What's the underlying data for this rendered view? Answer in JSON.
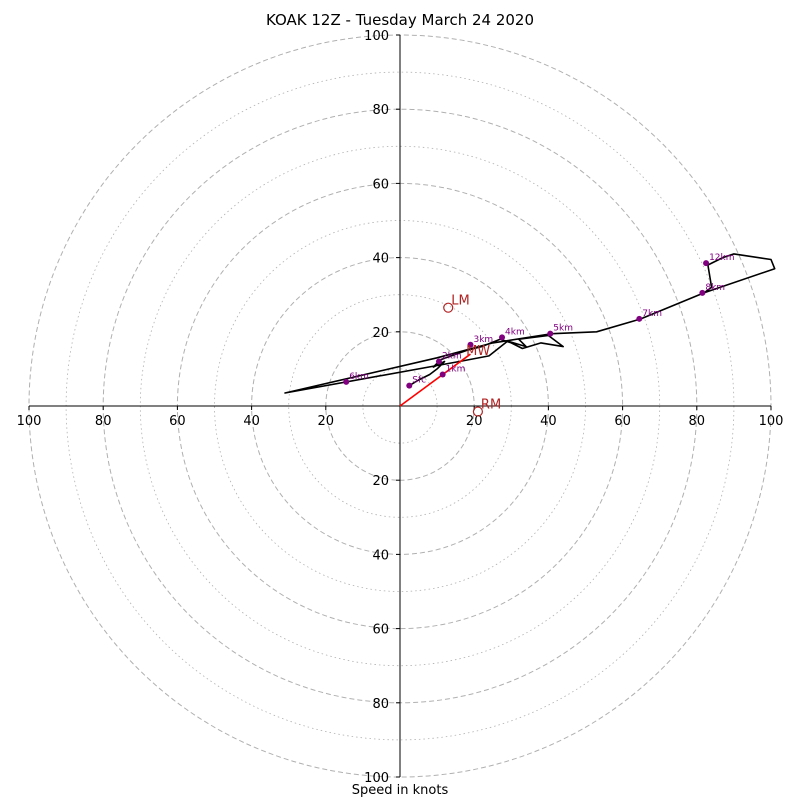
{
  "chart_data": {
    "type": "hodograph",
    "title": "KOAK 12Z - Tuesday March 24 2020",
    "xlabel": "Speed in knots",
    "units": "knots",
    "range": [
      -100,
      100
    ],
    "ring_labels": [
      "100",
      "80",
      "60",
      "40",
      "20",
      "20",
      "40",
      "60",
      "80",
      "100"
    ],
    "ring_label_values": [
      -100,
      -80,
      -60,
      -40,
      -20,
      20,
      40,
      60,
      80,
      100
    ],
    "major_rings": [
      20,
      40,
      60,
      80,
      100
    ],
    "minor_rings": [
      10,
      30,
      50,
      70,
      90
    ],
    "trace": [
      [
        2.5,
        5.5
      ],
      [
        5,
        7
      ],
      [
        8,
        8.5
      ],
      [
        10,
        10
      ],
      [
        12,
        12
      ],
      [
        9,
        10.5
      ],
      [
        11,
        12.5
      ],
      [
        18,
        15
      ],
      [
        22,
        16
      ],
      [
        27,
        18
      ],
      [
        30,
        17
      ],
      [
        33,
        15.5
      ],
      [
        38,
        17
      ],
      [
        44,
        16
      ],
      [
        40,
        19
      ],
      [
        32,
        18
      ],
      [
        34,
        16
      ],
      [
        29,
        17.5
      ],
      [
        24,
        13.5
      ],
      [
        16,
        12
      ],
      [
        -31,
        3.5
      ],
      [
        10,
        13
      ],
      [
        25,
        17
      ],
      [
        41,
        19.5
      ],
      [
        53,
        20
      ],
      [
        65,
        23.5
      ],
      [
        82,
        30.5
      ],
      [
        84,
        32
      ],
      [
        83,
        38
      ],
      [
        87,
        40
      ],
      [
        90,
        41
      ],
      [
        100,
        39.5
      ],
      [
        101,
        37
      ],
      [
        82,
        30.5
      ]
    ],
    "markers": [
      {
        "label": "Sfc",
        "u": 2.5,
        "v": 5.5
      },
      {
        "label": "1km",
        "u": 11.5,
        "v": 8.5
      },
      {
        "label": "2km",
        "u": 10.5,
        "v": 12
      },
      {
        "label": "3km",
        "u": 19,
        "v": 16.5
      },
      {
        "label": "4km",
        "u": 27.5,
        "v": 18.5
      },
      {
        "label": "5km",
        "u": 40.5,
        "v": 19.5
      },
      {
        "label": "6km",
        "u": -14.5,
        "v": 6.5
      },
      {
        "label": "7km",
        "u": 64.5,
        "v": 23.5
      },
      {
        "label": "8km",
        "u": 81.5,
        "v": 30.5
      },
      {
        "label": "12km",
        "u": 82.5,
        "v": 38.5
      }
    ],
    "motions": [
      {
        "label": "LM",
        "u": 13,
        "v": 26.5
      },
      {
        "label": "RM",
        "u": 21,
        "v": -1.5
      },
      {
        "label": "MW",
        "u": 17,
        "v": 13
      }
    ],
    "shear_vector": {
      "u0": 0,
      "v0": 0,
      "u1": 19,
      "v1": 14
    },
    "colors": {
      "trace": "#000000",
      "marker": "#800080",
      "motion": "#b22222",
      "shear": "#ff0000",
      "grid": "#b0b0b0",
      "axis": "#000000"
    },
    "grid": true
  }
}
